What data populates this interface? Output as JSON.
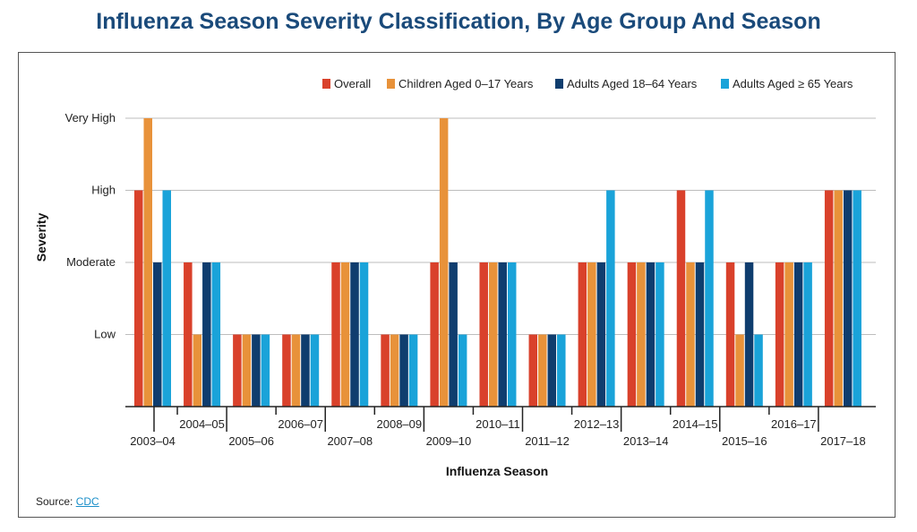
{
  "title": "Influenza Season Severity Classification, By Age Group And Season",
  "source": {
    "label": "Source:",
    "link_text": "CDC"
  },
  "chart_data": {
    "type": "bar",
    "title": "Influenza Season Severity Classification, By Age Group And Season",
    "xlabel": "Influenza Season",
    "ylabel": "Severity",
    "y_levels": [
      "Low",
      "Moderate",
      "High",
      "Very High"
    ],
    "ylim": [
      0,
      4
    ],
    "grid": true,
    "legend_position": "top-right",
    "categories": [
      "2003–04",
      "2004–05",
      "2005–06",
      "2006–07",
      "2007–08",
      "2008–09",
      "2009–10",
      "2010–11",
      "2011–12",
      "2012–13",
      "2013–14",
      "2014–15",
      "2015–16",
      "2016–17",
      "2017–18"
    ],
    "series": [
      {
        "name": "Overall",
        "color": "#d9412b",
        "values": [
          "High",
          "Moderate",
          "Low",
          "Low",
          "Moderate",
          "Low",
          "Moderate",
          "Moderate",
          "Low",
          "Moderate",
          "Moderate",
          "High",
          "Moderate",
          "Moderate",
          "High"
        ]
      },
      {
        "name": "Children Aged 0–17 Years",
        "color": "#e8923a",
        "values": [
          "Very High",
          "Low",
          "Low",
          "Low",
          "Moderate",
          "Low",
          "Very High",
          "Moderate",
          "Low",
          "Moderate",
          "Moderate",
          "Moderate",
          "Low",
          "Moderate",
          "High"
        ]
      },
      {
        "name": "Adults Aged 18–64 Years",
        "color": "#0f3d6e",
        "values": [
          "Moderate",
          "Moderate",
          "Low",
          "Low",
          "Moderate",
          "Low",
          "Moderate",
          "Moderate",
          "Low",
          "Moderate",
          "Moderate",
          "Moderate",
          "Moderate",
          "Moderate",
          "High"
        ]
      },
      {
        "name": "Adults Aged ≥ 65 Years",
        "color": "#1aa3d9",
        "values": [
          "High",
          "Moderate",
          "Low",
          "Low",
          "Moderate",
          "Low",
          "Low",
          "Moderate",
          "Low",
          "High",
          "Moderate",
          "High",
          "Low",
          "Moderate",
          "High"
        ]
      }
    ]
  }
}
